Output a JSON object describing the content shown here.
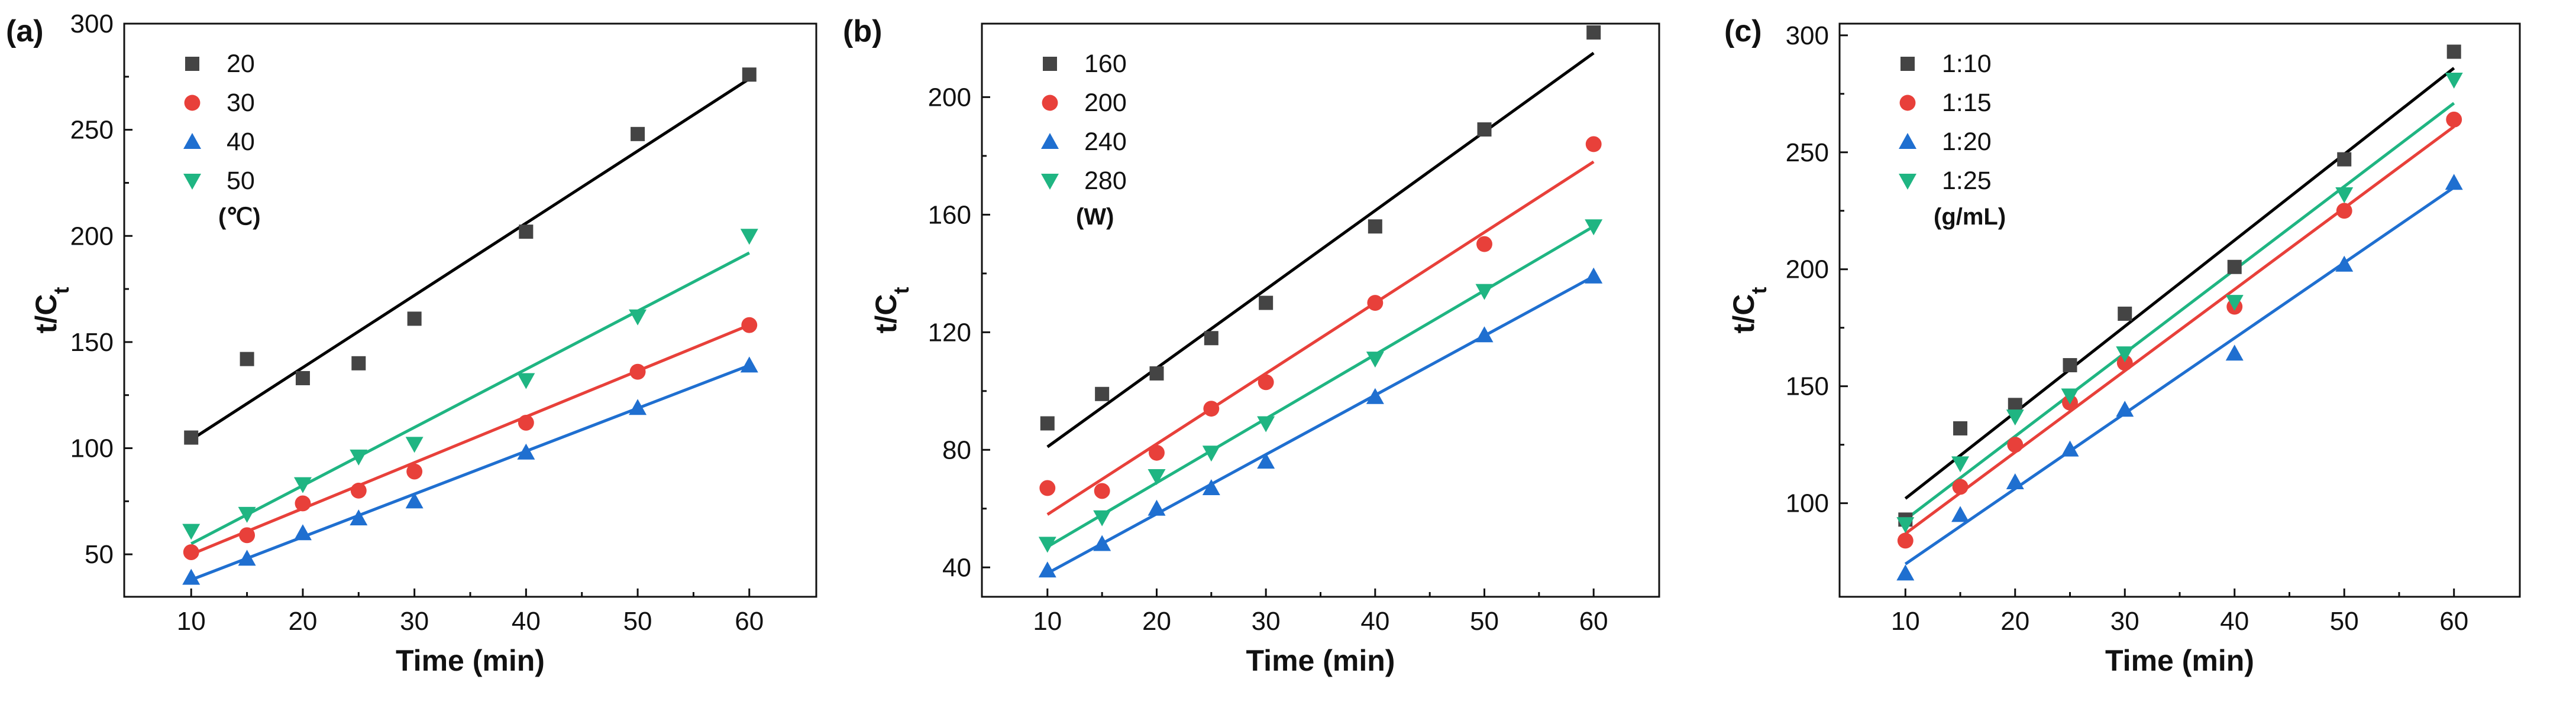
{
  "chart_data": [
    {
      "type": "scatter",
      "panel_label": "(a)",
      "xlabel": "Time (min)",
      "ylabel": "t/C",
      "ylabel_sub": "t",
      "xlim": [
        4,
        66
      ],
      "ylim": [
        30,
        300
      ],
      "xticks": [
        10,
        20,
        30,
        40,
        50,
        60
      ],
      "yticks": [
        50,
        100,
        150,
        200,
        250,
        300
      ],
      "legend_unit": "(℃)",
      "series": [
        {
          "name": "20",
          "marker": "square",
          "color": "#444444",
          "x": [
            10,
            15,
            20,
            25,
            30,
            40,
            50,
            60
          ],
          "y": [
            105,
            142,
            133,
            140,
            161,
            202,
            248,
            276
          ],
          "fit": [
            [
              10,
              104
            ],
            [
              60,
              274
            ]
          ]
        },
        {
          "name": "30",
          "marker": "circle",
          "color": "#e8403a",
          "x": [
            10,
            15,
            20,
            25,
            30,
            40,
            50,
            60
          ],
          "y": [
            51,
            59,
            74,
            80,
            89,
            112,
            136,
            158
          ],
          "fit": [
            [
              10,
              50
            ],
            [
              60,
              158
            ]
          ]
        },
        {
          "name": "40",
          "marker": "triangle-up",
          "color": "#1f6fd0",
          "x": [
            10,
            15,
            20,
            25,
            30,
            40,
            50,
            60
          ],
          "y": [
            39,
            48,
            60,
            67,
            75,
            98,
            119,
            139
          ],
          "fit": [
            [
              10,
              38
            ],
            [
              60,
              139
            ]
          ]
        },
        {
          "name": "50",
          "marker": "triangle-down",
          "color": "#1fb582",
          "x": [
            10,
            15,
            20,
            25,
            30,
            40,
            50,
            60
          ],
          "y": [
            61,
            69,
            83,
            96,
            102,
            132,
            162,
            200
          ],
          "fit": [
            [
              10,
              55
            ],
            [
              60,
              192
            ]
          ]
        }
      ]
    },
    {
      "type": "scatter",
      "panel_label": "(b)",
      "xlabel": "Time (min)",
      "ylabel": "t/C",
      "ylabel_sub": "t",
      "xlim": [
        4,
        66
      ],
      "ylim": [
        30,
        225
      ],
      "xticks": [
        10,
        20,
        30,
        40,
        50,
        60
      ],
      "yticks": [
        40,
        80,
        120,
        160,
        200
      ],
      "legend_unit": "(W)",
      "series": [
        {
          "name": "160",
          "marker": "square",
          "color": "#444444",
          "x": [
            10,
            15,
            20,
            25,
            30,
            40,
            50,
            60
          ],
          "y": [
            89,
            99,
            106,
            118,
            130,
            156,
            189,
            222
          ],
          "fit": [
            [
              10,
              81
            ],
            [
              60,
              215
            ]
          ]
        },
        {
          "name": "200",
          "marker": "circle",
          "color": "#e8403a",
          "x": [
            10,
            15,
            20,
            25,
            30,
            40,
            50,
            60
          ],
          "y": [
            67,
            66,
            79,
            94,
            103,
            130,
            150,
            184
          ],
          "fit": [
            [
              10,
              58
            ],
            [
              60,
              178
            ]
          ]
        },
        {
          "name": "240",
          "marker": "triangle-up",
          "color": "#1f6fd0",
          "x": [
            10,
            15,
            20,
            25,
            30,
            40,
            50,
            60
          ],
          "y": [
            39,
            48,
            60,
            67,
            76,
            98,
            119,
            139
          ],
          "fit": [
            [
              10,
              38
            ],
            [
              60,
              139
            ]
          ]
        },
        {
          "name": "280",
          "marker": "triangle-down",
          "color": "#1fb582",
          "x": [
            10,
            15,
            20,
            25,
            30,
            40,
            50,
            60
          ],
          "y": [
            48,
            57,
            71,
            79,
            89,
            111,
            134,
            156
          ],
          "fit": [
            [
              10,
              47
            ],
            [
              60,
              156
            ]
          ]
        }
      ]
    },
    {
      "type": "scatter",
      "panel_label": "(c)",
      "xlabel": "Time (min)",
      "ylabel": "t/C",
      "ylabel_sub": "t",
      "xlim": [
        4,
        66
      ],
      "ylim": [
        60,
        305
      ],
      "xticks": [
        10,
        20,
        30,
        40,
        50,
        60
      ],
      "yticks": [
        100,
        150,
        200,
        250,
        300
      ],
      "legend_unit": "(g/mL)",
      "series": [
        {
          "name": "1:10",
          "marker": "square",
          "color": "#444444",
          "x": [
            10,
            15,
            20,
            25,
            30,
            40,
            50,
            60
          ],
          "y": [
            93,
            132,
            142,
            159,
            181,
            201,
            247,
            293
          ],
          "fit": [
            [
              10,
              102
            ],
            [
              60,
              286
            ]
          ]
        },
        {
          "name": "1:15",
          "marker": "circle",
          "color": "#e8403a",
          "x": [
            10,
            15,
            20,
            25,
            30,
            40,
            50,
            60
          ],
          "y": [
            84,
            107,
            125,
            143,
            160,
            184,
            225,
            264
          ],
          "fit": [
            [
              10,
              87
            ],
            [
              60,
              261
            ]
          ]
        },
        {
          "name": "1:20",
          "marker": "triangle-up",
          "color": "#1f6fd0",
          "x": [
            10,
            15,
            20,
            25,
            30,
            40,
            50,
            60
          ],
          "y": [
            70,
            95,
            109,
            123,
            140,
            164,
            202,
            237
          ],
          "fit": [
            [
              10,
              74
            ],
            [
              60,
              235
            ]
          ]
        },
        {
          "name": "1:25",
          "marker": "triangle-down",
          "color": "#1fb582",
          "x": [
            10,
            15,
            20,
            25,
            30,
            40,
            50,
            60
          ],
          "y": [
            91,
            117,
            137,
            146,
            164,
            186,
            232,
            281
          ],
          "fit": [
            [
              10,
              93
            ],
            [
              60,
              271
            ]
          ]
        }
      ]
    }
  ]
}
